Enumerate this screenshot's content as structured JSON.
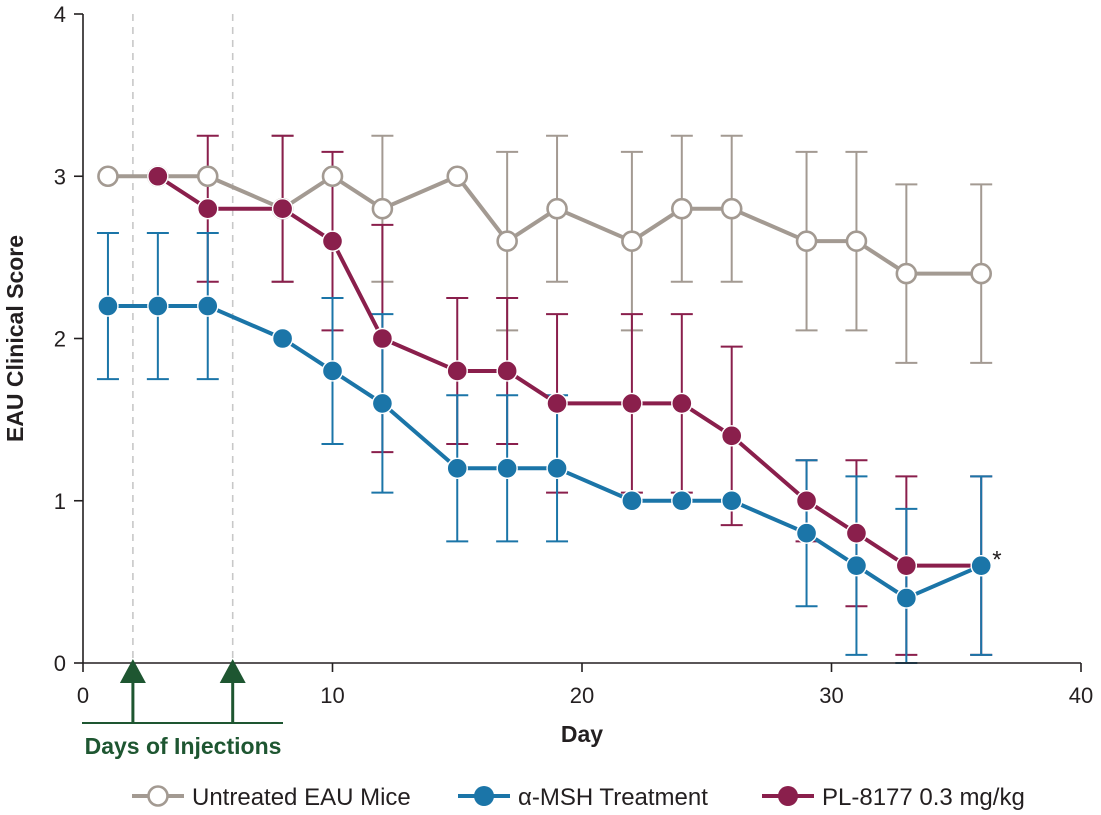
{
  "chart_data": {
    "type": "line",
    "title": "",
    "xlabel": "Day",
    "ylabel": "EAU Clinical Score",
    "xlim": [
      0,
      40
    ],
    "ylim": [
      0,
      4
    ],
    "x_ticks": [
      0,
      10,
      20,
      30,
      40
    ],
    "y_ticks": [
      0,
      1,
      2,
      3,
      4
    ],
    "grid": false,
    "legend_position": "bottom",
    "colors": {
      "untreated": "#a39a92",
      "msh": "#1b75a8",
      "pl8177": "#8a1f4c",
      "injection": "#1e5631",
      "axis": "#231f20",
      "guide": "#c8c8c8"
    },
    "series": [
      {
        "key": "untreated",
        "name": "Untreated EAU Mice",
        "marker": "open",
        "x": [
          1,
          3,
          5,
          8,
          10,
          12,
          15,
          17,
          19,
          22,
          24,
          26,
          29,
          31,
          33,
          36
        ],
        "y": [
          3.0,
          3.0,
          3.0,
          2.8,
          3.0,
          2.8,
          3.0,
          2.6,
          2.8,
          2.6,
          2.8,
          2.8,
          2.6,
          2.6,
          2.4,
          2.4
        ],
        "err": [
          0,
          0,
          0,
          0.45,
          0,
          0.45,
          0,
          0.55,
          0.45,
          0.55,
          0.45,
          0.45,
          0.55,
          0.55,
          0.55,
          0.55
        ]
      },
      {
        "key": "msh",
        "name": "α-MSH Treatment",
        "marker": "filled",
        "x": [
          1,
          3,
          5,
          8,
          10,
          12,
          15,
          17,
          19,
          22,
          24,
          26,
          29,
          31,
          33,
          36
        ],
        "y": [
          2.2,
          2.2,
          2.2,
          2.0,
          1.8,
          1.6,
          1.2,
          1.2,
          1.2,
          1.0,
          1.0,
          1.0,
          0.8,
          0.6,
          0.4,
          0.6
        ],
        "err": [
          0.45,
          0.45,
          0.45,
          0,
          0.45,
          0.55,
          0.45,
          0.45,
          0.45,
          0,
          0,
          0,
          0.45,
          0.55,
          0.55,
          0.55
        ]
      },
      {
        "key": "pl8177",
        "name": "PL-8177 0.3 mg/kg",
        "marker": "filled",
        "x": [
          3,
          5,
          8,
          10,
          12,
          15,
          17,
          19,
          22,
          24,
          26,
          29,
          31,
          33,
          36
        ],
        "y": [
          3.0,
          2.8,
          2.8,
          2.6,
          2.0,
          1.8,
          1.8,
          1.6,
          1.6,
          1.6,
          1.4,
          1.0,
          0.8,
          0.6,
          0.6
        ],
        "err": [
          0,
          0.45,
          0.45,
          0.55,
          0.7,
          0.45,
          0.45,
          0.55,
          0.55,
          0.55,
          0.55,
          0.25,
          0.45,
          0.55,
          0.55
        ]
      }
    ],
    "injection_days": [
      2,
      6
    ],
    "injection_label": "Days of Injections",
    "annotations": [
      {
        "text": "*",
        "x": 36,
        "y": 0.6
      }
    ]
  }
}
